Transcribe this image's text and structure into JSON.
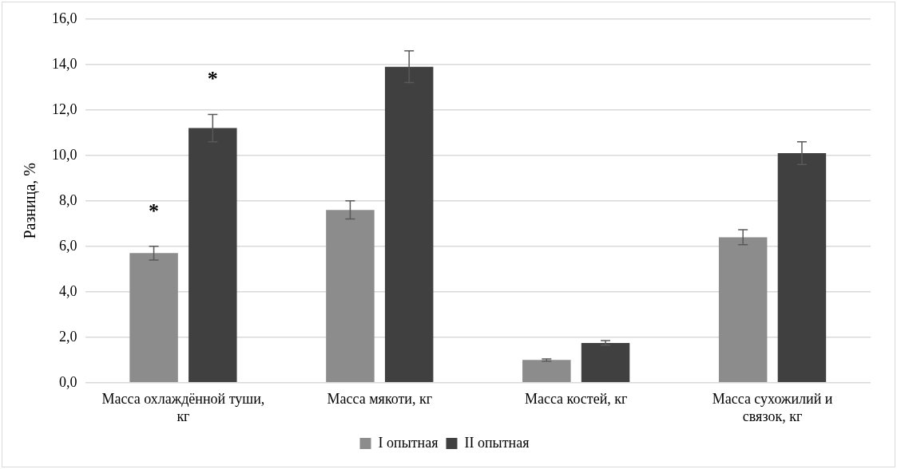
{
  "chart_data": {
    "type": "bar",
    "ylabel": "Разница, %",
    "categories": [
      "Масса охлаждённой туши, кг",
      "Масса мякоти, кг",
      "Масса костей, кг",
      "Масса сухожилий и связок, кг"
    ],
    "series": [
      {
        "name": "I опытная",
        "color": "#8c8c8c",
        "values": [
          5.7,
          7.6,
          1.0,
          6.4
        ],
        "errors": [
          0.3,
          0.4,
          0.05,
          0.33
        ]
      },
      {
        "name": "II опытная",
        "color": "#404040",
        "values": [
          11.2,
          13.9,
          1.75,
          10.1
        ],
        "errors": [
          0.6,
          0.7,
          0.1,
          0.5
        ]
      }
    ],
    "ylim": [
      0,
      16
    ],
    "yticks": [
      {
        "value": 0,
        "label": "0,0"
      },
      {
        "value": 2,
        "label": "2,0"
      },
      {
        "value": 4,
        "label": "4,0"
      },
      {
        "value": 6,
        "label": "6,0"
      },
      {
        "value": 8,
        "label": "8,0"
      },
      {
        "value": 10,
        "label": "10,0"
      },
      {
        "value": 12,
        "label": "12,0"
      },
      {
        "value": 14,
        "label": "14,0"
      },
      {
        "value": 16,
        "label": "16,0"
      }
    ],
    "grid": "y",
    "legend": "bottom",
    "annotations": [
      "*",
      "*"
    ]
  }
}
